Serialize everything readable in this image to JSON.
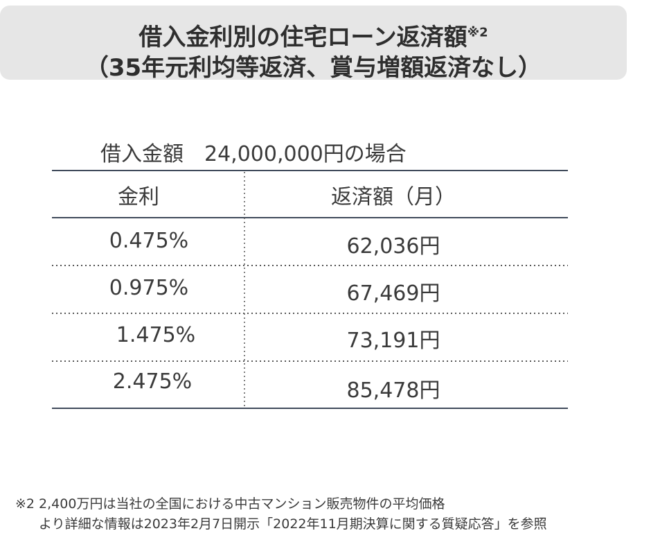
{
  "title": {
    "line1": "借入金利別の住宅ローン返済額",
    "note_mark": "※2",
    "line2": "（35年元利均等返済、賞与増額返済なし）"
  },
  "caption": "借入金額　24,000,000円の場合",
  "chart_data": {
    "type": "table",
    "columns": [
      "金利",
      "返済額（月）"
    ],
    "rows": [
      [
        "0.475%",
        "62,036円"
      ],
      [
        "0.975%",
        "67,469円"
      ],
      [
        "1.475%",
        "73,191円"
      ],
      [
        "2.475%",
        "85,478円"
      ]
    ]
  },
  "footnote": {
    "line1": "※2  2,400万円は当社の全国における中古マンション販売物件の平均価格",
    "line2": "より詳細な情報は2023年2月7日開示「2022年11月期決算に関する質疑応答」を参照"
  },
  "colors": {
    "title_bg": "#e6e6e6",
    "rule": "#3f4a5a",
    "text": "#3a3a3a"
  }
}
